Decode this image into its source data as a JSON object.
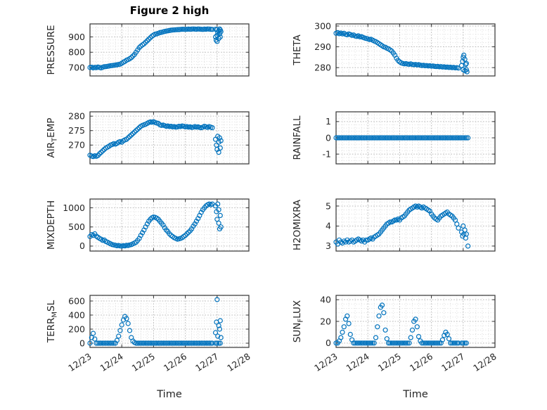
{
  "figure": {
    "title": "Figure 2 high",
    "xlabel": "Time",
    "xlim": [
      0,
      5
    ],
    "xticks": [
      0,
      1,
      2,
      3,
      4,
      5
    ],
    "xtick_labels": [
      "12/23",
      "12/24",
      "12/25",
      "12/26",
      "12/27",
      "12/28"
    ],
    "marker_color": "#0072BD",
    "text_color": "#262626",
    "box_color": "#333333",
    "grid_major_color": "#b8b8b8",
    "grid_minor_color": "#dcdcdc"
  },
  "chart_data": [
    {
      "name": "pressure",
      "type": "scatter",
      "ylabel_parts": [
        {
          "t": "PRESSURE"
        }
      ],
      "ylim": [
        645,
        985
      ],
      "yticks": [
        700,
        800,
        900
      ],
      "show_xticklabels": false,
      "series": {
        "x0": 0,
        "dx": 0.05,
        "y": [
          700,
          702,
          698,
          701,
          699,
          703,
          700,
          698,
          702,
          705,
          706,
          708,
          710,
          712,
          713,
          715,
          716,
          718,
          720,
          722,
          728,
          735,
          740,
          748,
          752,
          758,
          765,
          775,
          785,
          800,
          815,
          830,
          840,
          848,
          855,
          865,
          875,
          885,
          895,
          905,
          912,
          918,
          920,
          924,
          928,
          930,
          933,
          936,
          938,
          940,
          942,
          944,
          945,
          946,
          947,
          948,
          948,
          949,
          950,
          950,
          949,
          950,
          951,
          950,
          951,
          952,
          951,
          950,
          952,
          951,
          950,
          949,
          951,
          950,
          952,
          951,
          950,
          949
        ]
      },
      "extra_points": [
        [
          3.95,
          900
        ],
        [
          3.97,
          880
        ],
        [
          4.0,
          870
        ],
        [
          4.0,
          910
        ],
        [
          4.02,
          930
        ],
        [
          4.05,
          890
        ],
        [
          4.05,
          940
        ],
        [
          4.08,
          920
        ],
        [
          4.1,
          945
        ],
        [
          4.1,
          900
        ],
        [
          4.12,
          935
        ],
        [
          3.95,
          950
        ],
        [
          4.0,
          948
        ],
        [
          4.08,
          952
        ]
      ]
    },
    {
      "name": "theta",
      "type": "scatter",
      "ylabel_parts": [
        {
          "t": "THETA"
        }
      ],
      "ylim": [
        276,
        301
      ],
      "yticks": [
        280,
        290,
        300
      ],
      "show_xticklabels": false,
      "series": {
        "x0": 0,
        "dx": 0.05,
        "y": [
          296.5,
          296.8,
          296.3,
          296.6,
          296.2,
          296.5,
          296.0,
          295.8,
          296.2,
          295.9,
          295.5,
          295.7,
          295.2,
          295.0,
          295.3,
          294.8,
          294.9,
          294.5,
          294.2,
          294.0,
          293.8,
          293.5,
          293.6,
          293.2,
          292.8,
          292.5,
          292.0,
          291.5,
          291.0,
          290.5,
          290.0,
          289.8,
          289.3,
          289.0,
          288.5,
          288.0,
          287.0,
          286.0,
          284.5,
          283.5,
          282.8,
          282.3,
          282.0,
          281.8,
          281.9,
          281.7,
          281.6,
          281.8,
          281.5,
          281.4,
          281.5,
          281.3,
          281.4,
          281.2,
          281.0,
          281.1,
          280.9,
          281.0,
          280.8,
          280.9,
          280.7,
          280.8,
          280.6,
          280.5,
          280.6,
          280.4,
          280.5,
          280.3,
          280.4,
          280.2,
          280.3,
          280.1,
          280.2,
          280.0,
          280.1,
          279.9,
          280.0,
          279.8
        ]
      },
      "extra_points": [
        [
          3.95,
          281
        ],
        [
          3.98,
          283
        ],
        [
          4.0,
          285
        ],
        [
          4.0,
          279
        ],
        [
          4.02,
          286
        ],
        [
          4.05,
          284
        ],
        [
          4.05,
          278.5
        ],
        [
          4.08,
          281.5
        ],
        [
          4.1,
          279
        ],
        [
          4.1,
          282
        ],
        [
          4.12,
          278
        ]
      ]
    },
    {
      "name": "air-temp",
      "type": "scatter",
      "ylabel_parts": [
        {
          "t": "AIR"
        },
        {
          "t": "T",
          "sub": true
        },
        {
          "t": "EMP"
        }
      ],
      "ylim": [
        263.5,
        281.5
      ],
      "yticks": [
        270,
        275,
        280
      ],
      "show_xticklabels": false,
      "series": {
        "x0": 0,
        "dx": 0.05,
        "y": [
          266.5,
          266.2,
          266.0,
          266.3,
          266.1,
          266.4,
          267.0,
          267.5,
          268.0,
          268.5,
          269.0,
          269.3,
          269.6,
          270.0,
          270.2,
          270.5,
          270.3,
          270.6,
          271.0,
          271.2,
          271.0,
          271.5,
          271.8,
          272.0,
          272.5,
          273.0,
          273.5,
          274.0,
          274.5,
          275.0,
          275.5,
          276.0,
          276.5,
          276.8,
          277.0,
          277.2,
          277.5,
          277.8,
          278.0,
          277.9,
          278.1,
          277.8,
          277.6,
          277.5,
          277.0,
          276.8,
          276.9,
          276.7,
          276.5,
          276.6,
          276.4,
          276.5,
          276.3,
          276.4,
          276.2,
          276.3,
          276.5,
          276.4,
          276.6,
          276.5,
          276.3,
          276.4,
          276.2,
          276.3,
          276.1,
          276.2,
          276.4,
          276.2,
          276.3,
          276.1,
          276.0,
          276.2,
          276.5,
          276.3,
          276.1,
          276.4,
          276.2,
          276.0
        ]
      },
      "extra_points": [
        [
          3.95,
          272
        ],
        [
          3.98,
          270
        ],
        [
          4.0,
          268.5
        ],
        [
          4.02,
          273
        ],
        [
          4.05,
          271
        ],
        [
          4.05,
          267.5
        ],
        [
          4.08,
          272.5
        ],
        [
          4.1,
          269
        ],
        [
          4.12,
          271.5
        ]
      ]
    },
    {
      "name": "rainfall",
      "type": "scatter",
      "ylabel_parts": [
        {
          "t": "RAINFALL"
        }
      ],
      "ylim": [
        -1.6,
        1.6
      ],
      "yticks": [
        -1,
        0,
        1
      ],
      "show_xticklabels": false,
      "series": {
        "x0": 0,
        "dx": 0.05,
        "y": [
          0,
          0,
          0,
          0,
          0,
          0,
          0,
          0,
          0,
          0,
          0,
          0,
          0,
          0,
          0,
          0,
          0,
          0,
          0,
          0,
          0,
          0,
          0,
          0,
          0,
          0,
          0,
          0,
          0,
          0,
          0,
          0,
          0,
          0,
          0,
          0,
          0,
          0,
          0,
          0,
          0,
          0,
          0,
          0,
          0,
          0,
          0,
          0,
          0,
          0,
          0,
          0,
          0,
          0,
          0,
          0,
          0,
          0,
          0,
          0,
          0,
          0,
          0,
          0,
          0,
          0,
          0,
          0,
          0,
          0,
          0,
          0,
          0,
          0,
          0,
          0,
          0,
          0,
          0,
          0,
          0,
          0,
          0,
          0
        ]
      },
      "extra_points": []
    },
    {
      "name": "mixdepth",
      "type": "scatter",
      "ylabel_parts": [
        {
          "t": "MIXDEPTH"
        }
      ],
      "ylim": [
        -130,
        1230
      ],
      "yticks": [
        0,
        500,
        1000
      ],
      "show_xticklabels": false,
      "series": {
        "x0": 0,
        "dx": 0.05,
        "y": [
          250,
          300,
          280,
          320,
          260,
          230,
          200,
          180,
          150,
          160,
          120,
          100,
          80,
          60,
          40,
          30,
          20,
          10,
          15,
          5,
          0,
          10,
          5,
          20,
          15,
          30,
          40,
          60,
          80,
          100,
          150,
          200,
          280,
          350,
          420,
          500,
          580,
          650,
          700,
          740,
          760,
          750,
          730,
          700,
          650,
          600,
          550,
          480,
          420,
          380,
          320,
          280,
          250,
          220,
          200,
          180,
          190,
          200,
          220,
          250,
          280,
          320,
          360,
          400,
          450,
          520,
          580,
          650,
          720,
          800,
          880,
          950,
          1000,
          1050,
          1080,
          1100,
          1080,
          1100
        ]
      },
      "extra_points": [
        [
          3.95,
          1050
        ],
        [
          3.98,
          900
        ],
        [
          4.0,
          700
        ],
        [
          4.02,
          1100
        ],
        [
          4.05,
          600
        ],
        [
          4.05,
          950
        ],
        [
          4.08,
          450
        ],
        [
          4.1,
          800
        ],
        [
          4.12,
          500
        ]
      ]
    },
    {
      "name": "h2omixra",
      "type": "scatter",
      "ylabel_parts": [
        {
          "t": "H2OMIXRA"
        }
      ],
      "ylim": [
        2.75,
        5.35
      ],
      "yticks": [
        3,
        4,
        5
      ],
      "show_xticklabels": false,
      "series": {
        "x0": 0,
        "dx": 0.05,
        "y": [
          3.2,
          3.1,
          3.3,
          3.2,
          3.15,
          3.25,
          3.2,
          3.3,
          3.2,
          3.25,
          3.3,
          3.2,
          3.25,
          3.3,
          3.35,
          3.3,
          3.25,
          3.3,
          3.2,
          3.3,
          3.3,
          3.35,
          3.4,
          3.35,
          3.45,
          3.5,
          3.55,
          3.6,
          3.7,
          3.8,
          3.9,
          4.0,
          4.1,
          4.15,
          4.2,
          4.2,
          4.25,
          4.3,
          4.3,
          4.35,
          4.3,
          4.4,
          4.45,
          4.5,
          4.6,
          4.7,
          4.8,
          4.85,
          4.9,
          4.95,
          5.0,
          4.95,
          5.0,
          4.95,
          4.9,
          4.95,
          4.9,
          4.85,
          4.8,
          4.75,
          4.6,
          4.5,
          4.4,
          4.35,
          4.3,
          4.4,
          4.5,
          4.55,
          4.6,
          4.65,
          4.7,
          4.6,
          4.55,
          4.5,
          4.4,
          4.3,
          4.1,
          3.9
        ]
      },
      "extra_points": [
        [
          3.95,
          3.7
        ],
        [
          3.98,
          3.5
        ],
        [
          4.0,
          4.0
        ],
        [
          4.02,
          3.6
        ],
        [
          4.05,
          3.8
        ],
        [
          4.08,
          3.4
        ],
        [
          4.1,
          3.6
        ],
        [
          4.15,
          3.0
        ]
      ]
    },
    {
      "name": "terr-msl",
      "type": "scatter",
      "ylabel_parts": [
        {
          "t": "TERR"
        },
        {
          "t": "M",
          "sub": true
        },
        {
          "t": "SL"
        }
      ],
      "ylim": [
        -60,
        680
      ],
      "yticks": [
        0,
        200,
        400,
        600
      ],
      "show_xticklabels": true,
      "series": {
        "x0": 0,
        "dx": 0.05,
        "y": [
          0,
          80,
          140,
          60,
          0,
          0,
          0,
          0,
          0,
          0,
          0,
          0,
          0,
          0,
          0,
          0,
          0,
          40,
          100,
          180,
          260,
          330,
          380,
          350,
          280,
          180,
          80,
          30,
          10,
          0,
          0,
          0,
          0,
          0,
          0,
          0,
          0,
          0,
          0,
          0,
          0,
          0,
          0,
          0,
          0,
          0,
          0,
          0,
          0,
          0,
          0,
          0,
          0,
          0,
          0,
          0,
          0,
          0,
          0,
          0,
          0,
          0,
          0,
          0,
          0,
          0,
          0,
          0,
          0,
          0,
          0,
          0,
          0,
          0,
          0,
          0,
          0,
          0
        ]
      },
      "extra_points": [
        [
          3.95,
          150
        ],
        [
          3.98,
          300
        ],
        [
          4.0,
          620
        ],
        [
          4.02,
          100
        ],
        [
          4.05,
          250
        ],
        [
          4.08,
          200
        ],
        [
          4.1,
          320
        ],
        [
          4.12,
          80
        ],
        [
          3.95,
          0
        ],
        [
          4.0,
          0
        ],
        [
          4.05,
          0
        ],
        [
          4.1,
          0
        ]
      ]
    },
    {
      "name": "sun-flux",
      "type": "scatter",
      "ylabel_parts": [
        {
          "t": "SUN"
        },
        {
          "t": "F",
          "sub": true
        },
        {
          "t": "LUX"
        }
      ],
      "ylim": [
        -4,
        44
      ],
      "yticks": [
        0,
        20,
        40
      ],
      "show_xticklabels": true,
      "series": {
        "x0": 0,
        "dx": 0.05,
        "y": [
          0,
          0,
          2,
          5,
          10,
          15,
          22,
          25,
          18,
          8,
          3,
          0,
          0,
          0,
          0,
          0,
          0,
          0,
          0,
          0,
          0,
          0,
          0,
          0,
          0,
          5,
          15,
          25,
          33,
          35,
          28,
          12,
          4,
          0,
          0,
          0,
          0,
          0,
          0,
          0,
          0,
          0,
          0,
          0,
          0,
          0,
          0,
          5,
          12,
          20,
          22,
          15,
          6,
          2,
          0,
          0,
          0,
          0,
          0,
          0,
          0,
          0,
          0,
          0,
          0,
          0,
          0,
          3,
          7,
          10,
          8,
          4,
          0,
          0,
          0,
          0,
          0,
          0
        ]
      },
      "extra_points": [
        [
          3.95,
          0
        ],
        [
          4.0,
          0
        ],
        [
          4.05,
          0
        ],
        [
          4.1,
          0
        ]
      ]
    }
  ]
}
